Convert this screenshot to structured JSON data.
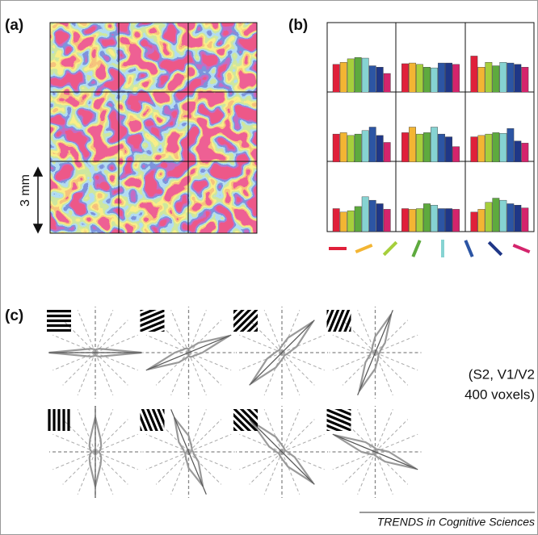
{
  "labels": {
    "a": "(a)",
    "b": "(b)",
    "c": "(c)"
  },
  "panel_a": {
    "scale_label": "3 mm"
  },
  "panel_b": {
    "colors": [
      "#e0203a",
      "#f3b533",
      "#a6cf3c",
      "#5eaa3e",
      "#86d3d2",
      "#2c55a4",
      "#1f3787",
      "#d4246c"
    ],
    "orientations": [
      0,
      22.5,
      45,
      67.5,
      90,
      112.5,
      135,
      157.5
    ],
    "grid": [
      [
        40,
        43,
        48,
        50,
        49,
        38,
        36,
        27
      ],
      [
        41,
        42,
        40,
        36,
        35,
        42,
        42,
        40
      ],
      [
        52,
        36,
        43,
        38,
        43,
        42,
        40,
        36
      ],
      [
        40,
        42,
        38,
        40,
        45,
        50,
        38,
        28
      ],
      [
        42,
        50,
        40,
        42,
        50,
        40,
        36,
        22
      ],
      [
        36,
        38,
        40,
        42,
        41,
        48,
        30,
        27
      ],
      [
        33,
        28,
        30,
        36,
        50,
        45,
        40,
        32
      ],
      [
        33,
        32,
        33,
        40,
        38,
        33,
        33,
        32
      ],
      [
        28,
        32,
        42,
        48,
        45,
        40,
        38,
        34
      ]
    ]
  },
  "panel_c": {
    "plots": [
      {
        "orientation": 0,
        "radii": [
          1.0,
          0.2,
          0.12,
          0.08,
          0.06,
          0.08,
          0.12,
          0.2
        ]
      },
      {
        "orientation": 22.5,
        "radii": [
          0.3,
          0.95,
          0.3,
          0.12,
          0.08,
          0.1,
          0.12,
          0.15
        ]
      },
      {
        "orientation": 45,
        "radii": [
          0.15,
          0.35,
          0.95,
          0.35,
          0.15,
          0.1,
          0.08,
          0.1
        ]
      },
      {
        "orientation": 67.5,
        "radii": [
          0.1,
          0.12,
          0.3,
          0.9,
          0.35,
          0.15,
          0.1,
          0.08
        ]
      },
      {
        "orientation": 90,
        "radii": [
          0.08,
          0.12,
          0.18,
          0.3,
          0.75,
          0.3,
          0.18,
          0.12
        ]
      },
      {
        "orientation": 112.5,
        "radii": [
          0.1,
          0.08,
          0.1,
          0.15,
          0.35,
          0.8,
          0.3,
          0.12
        ]
      },
      {
        "orientation": 135,
        "radii": [
          0.12,
          0.08,
          0.08,
          0.1,
          0.15,
          0.35,
          0.95,
          0.3
        ]
      },
      {
        "orientation": 157.5,
        "radii": [
          0.3,
          0.12,
          0.08,
          0.06,
          0.08,
          0.12,
          0.3,
          0.95
        ]
      }
    ],
    "note": [
      "(S2, V1/V2",
      "400 voxels)"
    ]
  },
  "footer": "TRENDS in Cognitive Sciences"
}
